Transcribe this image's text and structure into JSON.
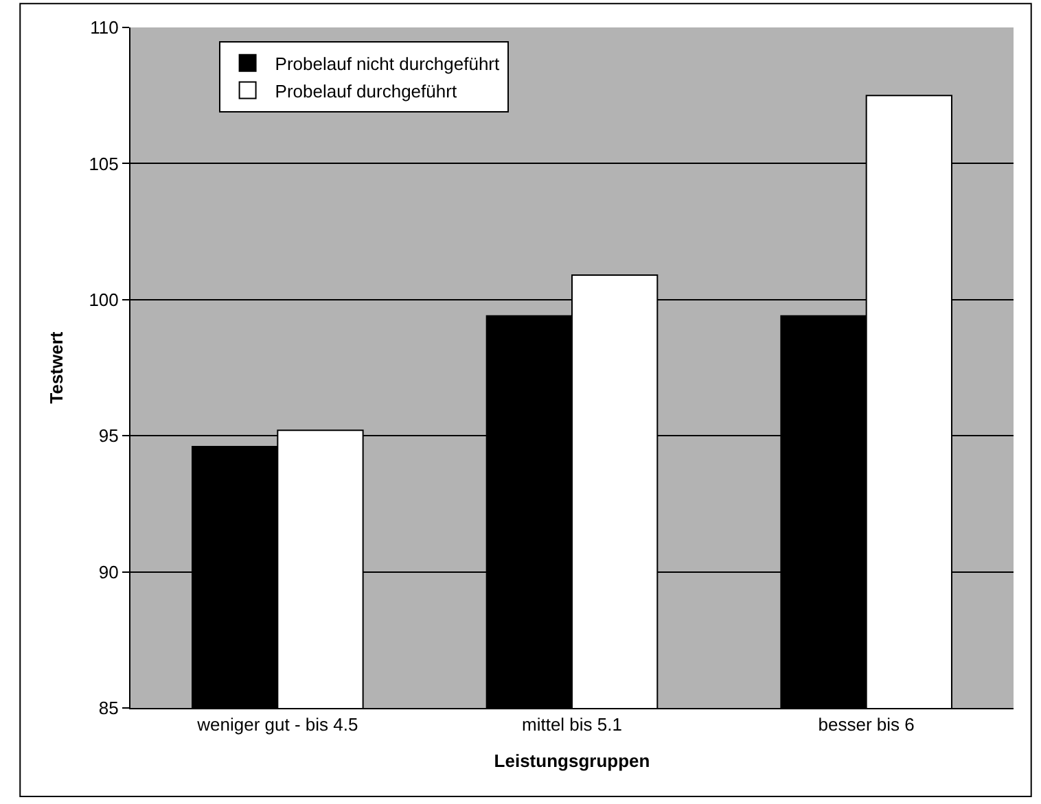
{
  "chart_data": {
    "type": "bar",
    "xlabel": "Leistungsgruppen",
    "ylabel": "Testwert",
    "categories": [
      "weniger gut - bis 4.5",
      "mittel bis 5.1",
      "besser bis 6"
    ],
    "series": [
      {
        "name": "Probelauf nicht durchgeführt",
        "color": "#000000",
        "values": [
          94.6,
          99.4,
          99.4
        ]
      },
      {
        "name": "Probelauf durchgeführt",
        "color": "#ffffff",
        "values": [
          95.2,
          100.9,
          107.5
        ]
      }
    ],
    "ylim": [
      85,
      110
    ],
    "yticks": [
      85,
      90,
      95,
      100,
      105,
      110
    ],
    "grid": "y",
    "legend": "top left"
  }
}
